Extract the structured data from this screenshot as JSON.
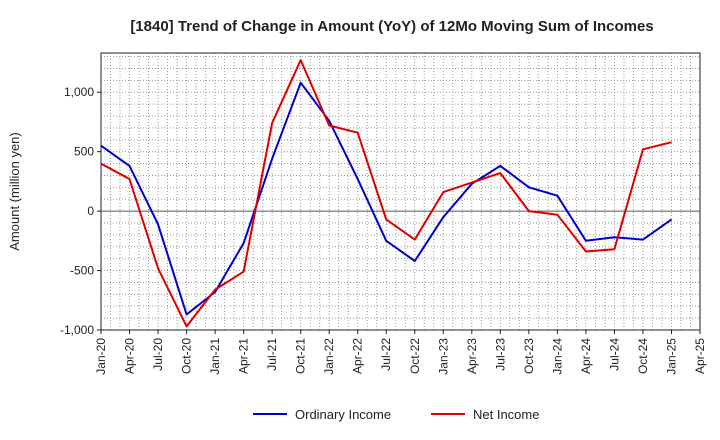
{
  "chart_data": {
    "type": "line",
    "title": "[1840]  Trend of Change in Amount (YoY) of 12Mo Moving Sum of Incomes",
    "xlabel": "",
    "ylabel": "Amount (million yen)",
    "ylim": [
      -1000,
      1330
    ],
    "y_ticks": [
      -1000,
      -500,
      0,
      500,
      1000
    ],
    "y_tick_labels": [
      "-1,000",
      "-500",
      "0",
      "500",
      "1,000"
    ],
    "x_tick_labels": [
      "Jan-20",
      "Apr-20",
      "Jul-20",
      "Oct-20",
      "Jan-21",
      "Apr-21",
      "Jul-21",
      "Oct-21",
      "Jan-22",
      "Apr-22",
      "Jul-22",
      "Oct-22",
      "Jan-23",
      "Apr-23",
      "Jul-23",
      "Oct-23",
      "Jan-24",
      "Apr-24",
      "Jul-24",
      "Oct-24",
      "Jan-25",
      "Apr-25"
    ],
    "grid": true,
    "legend_position": "bottom",
    "series": [
      {
        "name": "Ordinary Income",
        "color": "#0000cc",
        "values": [
          550,
          380,
          -110,
          -870,
          -680,
          -270,
          440,
          1080,
          760,
          270,
          -250,
          -420,
          -50,
          230,
          380,
          200,
          130,
          -250,
          -220,
          -240,
          -70
        ]
      },
      {
        "name": "Net Income",
        "color": "#dd0000",
        "values": [
          400,
          270,
          -480,
          -970,
          -660,
          -510,
          740,
          1270,
          720,
          660,
          -70,
          -240,
          160,
          240,
          320,
          0,
          -30,
          -340,
          -320,
          520,
          580
        ]
      }
    ]
  }
}
